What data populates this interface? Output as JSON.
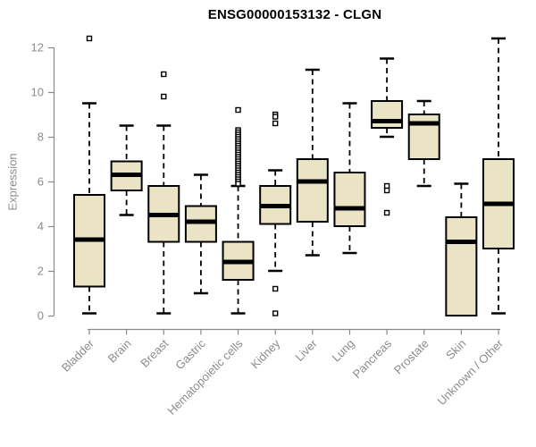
{
  "header": {
    "title": "ENSG00000153132 - CLGN"
  },
  "colors": {
    "box_fill": "#EBE4C4",
    "box_border": "#000000",
    "median": "#000000",
    "whisker": "#000000",
    "outlier_fill": "#FFFFFF",
    "axis": "#8A8A8A",
    "axis_text": "#8C8C8C",
    "title_text": "#000000",
    "background": "#FFFFFF"
  },
  "chart_data": {
    "type": "boxplot",
    "title": "ENSG00000153132 - CLGN",
    "xlabel": "",
    "ylabel": "Expression",
    "ylim": [
      0,
      12
    ],
    "yticks": [
      0,
      2,
      4,
      6,
      8,
      10,
      12
    ],
    "grid": false,
    "legend": null,
    "categories": [
      "Bladder",
      "Brain",
      "Breast",
      "Gastric",
      "Hematopoietic cells",
      "Kidney",
      "Liver",
      "Lung",
      "Pancreas",
      "Prostate",
      "Skin",
      "Unknown / Other"
    ],
    "series": [
      {
        "category": "Bladder",
        "low": 0.1,
        "q1": 1.3,
        "median": 3.4,
        "q3": 5.4,
        "high": 9.5,
        "outliers": [
          12.4
        ]
      },
      {
        "category": "Brain",
        "low": 4.5,
        "q1": 5.6,
        "median": 6.3,
        "q3": 6.9,
        "high": 8.5,
        "outliers": []
      },
      {
        "category": "Breast",
        "low": 0.1,
        "q1": 3.3,
        "median": 4.5,
        "q3": 5.8,
        "high": 8.5,
        "outliers": [
          9.8,
          10.8
        ]
      },
      {
        "category": "Gastric",
        "low": 1.0,
        "q1": 3.3,
        "median": 4.2,
        "q3": 4.9,
        "high": 6.3,
        "outliers": []
      },
      {
        "category": "Hematopoietic cells",
        "low": 0.1,
        "q1": 1.6,
        "median": 2.4,
        "q3": 3.3,
        "high": 5.8,
        "outliers": [
          9.2,
          8.3,
          8.2,
          8.1,
          8.0,
          7.9,
          7.8,
          7.7,
          7.6,
          7.5,
          7.4,
          7.3,
          7.2,
          7.1,
          7.0,
          6.9,
          6.8,
          6.7,
          6.6,
          6.5,
          6.4,
          6.3,
          6.2,
          6.1,
          6.0,
          5.9
        ]
      },
      {
        "category": "Kidney",
        "low": 2.0,
        "q1": 4.1,
        "median": 4.9,
        "q3": 5.8,
        "high": 6.5,
        "outliers": [
          9.0,
          8.9,
          8.6,
          1.2,
          0.1
        ]
      },
      {
        "category": "Liver",
        "low": 2.7,
        "q1": 4.2,
        "median": 6.0,
        "q3": 7.0,
        "high": 11.0,
        "outliers": []
      },
      {
        "category": "Lung",
        "low": 2.8,
        "q1": 4.0,
        "median": 4.8,
        "q3": 6.4,
        "high": 9.5,
        "outliers": []
      },
      {
        "category": "Pancreas",
        "low": 8.0,
        "q1": 8.4,
        "median": 8.7,
        "q3": 9.6,
        "high": 11.5,
        "outliers": [
          5.8,
          5.6,
          4.6
        ]
      },
      {
        "category": "Prostate",
        "low": 5.8,
        "q1": 7.0,
        "median": 8.6,
        "q3": 9.0,
        "high": 9.6,
        "outliers": []
      },
      {
        "category": "Skin",
        "low": 0.0,
        "q1": 0.0,
        "median": 3.3,
        "q3": 4.4,
        "high": 5.9,
        "outliers": []
      },
      {
        "category": "Unknown / Other",
        "low": 0.1,
        "q1": 3.0,
        "median": 5.0,
        "q3": 7.0,
        "high": 12.4,
        "outliers": []
      }
    ]
  }
}
